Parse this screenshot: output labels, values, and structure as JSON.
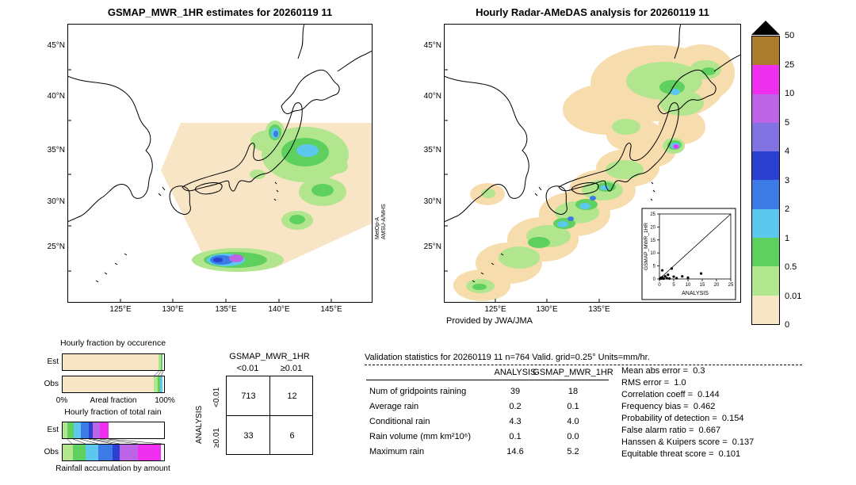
{
  "maps": {
    "left": {
      "title": "GSMAP_MWR_1HR estimates for 20260119 11",
      "lat_labels": [
        "45°N",
        "40°N",
        "35°N",
        "30°N",
        "25°N"
      ],
      "lon_labels": [
        "125°E",
        "130°E",
        "135°E",
        "140°E",
        "145°E"
      ],
      "sensor": [
        "MetOp-A",
        "AMSU-A/MHS"
      ]
    },
    "right": {
      "title": "Hourly Radar-AMeDAS analysis for 20260119 11",
      "lat_labels": [
        "45°N",
        "40°N",
        "35°N",
        "30°N",
        "25°N"
      ],
      "lon_labels": [
        "125°E",
        "130°E",
        "135°E"
      ],
      "credit": "Provided by JWA/JMA"
    }
  },
  "colorbar": {
    "labels": [
      "50",
      "25",
      "10",
      "5",
      "4",
      "3",
      "2",
      "1",
      "0.5",
      "0.01",
      "0"
    ],
    "colors": [
      "#ab7c2c",
      "#ee2fee",
      "#bd63e6",
      "#8172e2",
      "#2b3fd0",
      "#3c7ae6",
      "#5cc8ee",
      "#5ed05e",
      "#b2e68e",
      "#f8e5c5"
    ]
  },
  "chart_data": [
    {
      "type": "bar",
      "name": "hourly-fraction-by-occurrence",
      "title": "Hourly fraction by occurence",
      "orientation": "horizontal-stacked",
      "axis": {
        "min_label": "0%",
        "label": "Areal fraction",
        "max_label": "100%"
      },
      "series": [
        {
          "name": "Est",
          "segments": [
            {
              "color": "#f8e5c5",
              "frac": 0.945
            },
            {
              "color": "#b2e68e",
              "frac": 0.02
            },
            {
              "color": "#5ed05e",
              "frac": 0.02
            },
            {
              "color": "#ffffff",
              "frac": 0.015
            }
          ]
        },
        {
          "name": "Obs",
          "segments": [
            {
              "color": "#f8e5c5",
              "frac": 0.895
            },
            {
              "color": "#b2e68e",
              "frac": 0.04
            },
            {
              "color": "#5ed05e",
              "frac": 0.03
            },
            {
              "color": "#5cc8ee",
              "frac": 0.02
            },
            {
              "color": "#ffffff",
              "frac": 0.015
            }
          ]
        }
      ]
    },
    {
      "type": "bar",
      "name": "hourly-fraction-of-total-rain",
      "title": "Hourly fraction of total rain",
      "caption": "Rainfall accumulation by amount",
      "orientation": "horizontal-stacked",
      "series": [
        {
          "name": "Est",
          "segments": [
            {
              "color": "#b2e68e",
              "frac": 0.05
            },
            {
              "color": "#5ed05e",
              "frac": 0.06
            },
            {
              "color": "#5cc8ee",
              "frac": 0.07
            },
            {
              "color": "#3c7ae6",
              "frac": 0.08
            },
            {
              "color": "#2b3fd0",
              "frac": 0.04
            },
            {
              "color": "#bd63e6",
              "frac": 0.07
            },
            {
              "color": "#ee2fee",
              "frac": 0.08
            },
            {
              "color": "#ffffff",
              "frac": 0.55
            }
          ]
        },
        {
          "name": "Obs",
          "segments": [
            {
              "color": "#b2e68e",
              "frac": 0.1
            },
            {
              "color": "#5ed05e",
              "frac": 0.13
            },
            {
              "color": "#5cc8ee",
              "frac": 0.12
            },
            {
              "color": "#3c7ae6",
              "frac": 0.14
            },
            {
              "color": "#2b3fd0",
              "frac": 0.07
            },
            {
              "color": "#bd63e6",
              "frac": 0.18
            },
            {
              "color": "#ee2fee",
              "frac": 0.23
            },
            {
              "color": "#ffffff",
              "frac": 0.03
            }
          ]
        }
      ]
    },
    {
      "type": "table",
      "name": "contingency-table",
      "title": "GSMAP_MWR_1HR",
      "row_axis_label": "ANALYSIS",
      "col_labels": [
        "<0.01",
        "≥0.01"
      ],
      "row_labels": [
        "<0.01",
        "≥0.01"
      ],
      "values": [
        [
          "713",
          "12"
        ],
        [
          "33",
          "6"
        ]
      ]
    },
    {
      "type": "table",
      "name": "validation-statistics",
      "title": "Validation statistics for 20260119 11  n=764 Valid. grid=0.25° Units=mm/hr.",
      "eq": "=",
      "col_headers": [
        "ANALYSIS",
        "GSMAP_MWR_1HR"
      ],
      "rows": [
        {
          "label": "Num of gridpoints raining",
          "analysis": "39",
          "gsmap": "18"
        },
        {
          "label": "Average rain",
          "analysis": "0.2",
          "gsmap": "0.1"
        },
        {
          "label": "Conditional rain",
          "analysis": "4.3",
          "gsmap": "4.0"
        },
        {
          "label": "Rain volume (mm km²10⁶)",
          "analysis": "0.1",
          "gsmap": "0.0"
        },
        {
          "label": "Maximum rain",
          "analysis": "14.6",
          "gsmap": "5.2"
        }
      ],
      "metrics": [
        {
          "label": "Mean abs error",
          "value": "0.3"
        },
        {
          "label": "RMS error",
          "value": "1.0"
        },
        {
          "label": "Correlation coeff",
          "value": "0.144"
        },
        {
          "label": "Frequency bias",
          "value": "0.462"
        },
        {
          "label": "Probability of detection",
          "value": "0.154"
        },
        {
          "label": "False alarm ratio",
          "value": "0.667"
        },
        {
          "label": "Hanssen & Kuipers score",
          "value": "0.137"
        },
        {
          "label": "Equitable threat score",
          "value": "0.101"
        }
      ]
    },
    {
      "type": "scatter",
      "name": "gsmap-vs-analysis-inset",
      "xlabel": "ANALYSIS",
      "ylabel": "GSMAP_MWR_1HR",
      "xlim": [
        0,
        25
      ],
      "ylim": [
        0,
        25
      ],
      "xticks": [
        "0",
        "5",
        "10",
        "15",
        "20",
        "25"
      ],
      "yticks": [
        "0",
        "5",
        "10",
        "15",
        "20",
        "25"
      ],
      "identity_line": true,
      "points": [
        [
          0.2,
          0.1
        ],
        [
          0.5,
          0.4
        ],
        [
          0.8,
          0.2
        ],
        [
          1,
          0.6
        ],
        [
          1.5,
          0.1
        ],
        [
          2,
          1
        ],
        [
          2.6,
          0.3
        ],
        [
          3,
          1.6
        ],
        [
          3.5,
          0.2
        ],
        [
          4.3,
          4
        ],
        [
          5,
          0.9
        ],
        [
          6,
          0.3
        ],
        [
          8,
          1
        ],
        [
          10,
          0.5
        ],
        [
          14.6,
          2.1
        ],
        [
          1,
          3.3
        ]
      ]
    }
  ]
}
